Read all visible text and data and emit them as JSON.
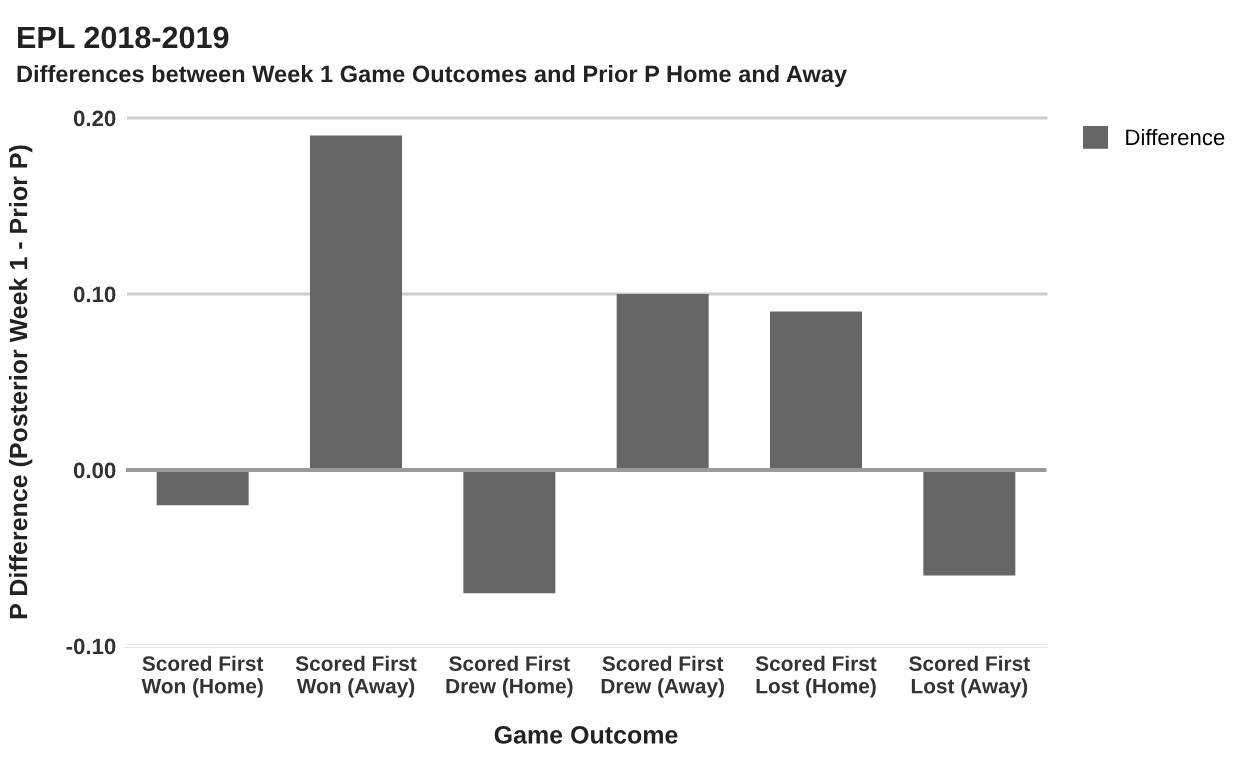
{
  "chart_data": {
    "type": "bar",
    "title": "EPL 2018-2019",
    "subtitle": "Differences between Week 1 Game Outcomes and Prior P Home and Away",
    "xlabel": "Game Outcome",
    "ylabel": "P Difference (Posterior Week 1 - Prior P)",
    "categories": [
      "Scored First\nWon (Home)",
      "Scored First\nWon (Away)",
      "Scored First\nDrew (Home)",
      "Scored First\nDrew (Away)",
      "Scored First\nLost (Home)",
      "Scored First\nLost (Away)"
    ],
    "series": [
      {
        "name": "Difference",
        "color": "#666666",
        "values": [
          -0.02,
          0.19,
          -0.07,
          0.1,
          0.09,
          -0.06
        ]
      }
    ],
    "ylim": [
      -0.1,
      0.2
    ],
    "yticks": [
      {
        "value": -0.1,
        "label": "-0.10"
      },
      {
        "value": 0,
        "label": "0.00"
      },
      {
        "value": 0.1,
        "label": "0.10"
      },
      {
        "value": 0.2,
        "label": "0.20"
      }
    ],
    "grid": "y",
    "legend": "top right"
  }
}
